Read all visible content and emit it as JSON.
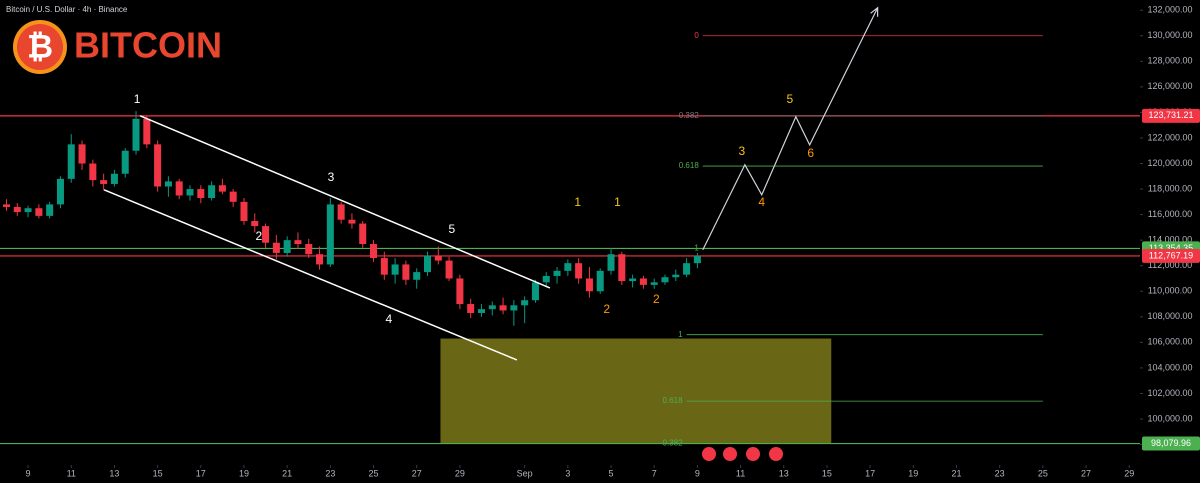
{
  "header": "Bitcoin / U.S. Dollar · 4h · Binance",
  "logo": {
    "symbol": "₿",
    "text": "BITCOIN"
  },
  "chart_data": {
    "type": "candlestick",
    "up_color": "#089981",
    "down_color": "#f23645",
    "xlim": [
      -1.3,
      51.5
    ],
    "ylim": [
      96400,
      132800
    ],
    "xticks": [
      {
        "value": 0,
        "label": "9"
      },
      {
        "value": 2,
        "label": "11"
      },
      {
        "value": 4,
        "label": "13"
      },
      {
        "value": 6,
        "label": "15"
      },
      {
        "value": 8,
        "label": "17"
      },
      {
        "value": 10,
        "label": "19"
      },
      {
        "value": 12,
        "label": "21"
      },
      {
        "value": 14,
        "label": "23"
      },
      {
        "value": 16,
        "label": "25"
      },
      {
        "value": 18,
        "label": "27"
      },
      {
        "value": 20,
        "label": "29"
      },
      {
        "value": 23,
        "label": "Sep"
      },
      {
        "value": 25,
        "label": "3"
      },
      {
        "value": 27,
        "label": "5"
      },
      {
        "value": 29,
        "label": "7"
      },
      {
        "value": 31,
        "label": "9"
      },
      {
        "value": 33,
        "label": "11"
      },
      {
        "value": 35,
        "label": "13"
      },
      {
        "value": 37,
        "label": "15"
      },
      {
        "value": 39,
        "label": "17"
      },
      {
        "value": 41,
        "label": "19"
      },
      {
        "value": 43,
        "label": "21"
      },
      {
        "value": 45,
        "label": "23"
      },
      {
        "value": 47,
        "label": "25"
      },
      {
        "value": 49,
        "label": "27"
      },
      {
        "value": 51,
        "label": "29"
      }
    ],
    "yticks": [
      {
        "value": 98000,
        "label": "98,000.00"
      },
      {
        "value": 100000,
        "label": "100,000.00"
      },
      {
        "value": 102000,
        "label": "102,000.00"
      },
      {
        "value": 104000,
        "label": "104,000.00"
      },
      {
        "value": 106000,
        "label": "106,000.00"
      },
      {
        "value": 108000,
        "label": "108,000.00"
      },
      {
        "value": 110000,
        "label": "110,000.00"
      },
      {
        "value": 112000,
        "label": "112,000.00"
      },
      {
        "value": 114000,
        "label": "114,000.00"
      },
      {
        "value": 116000,
        "label": "116,000.00"
      },
      {
        "value": 118000,
        "label": "118,000.00"
      },
      {
        "value": 120000,
        "label": "120,000.00"
      },
      {
        "value": 122000,
        "label": "122,000.00"
      },
      {
        "value": 124000,
        "label": "124,000.00"
      },
      {
        "value": 126000,
        "label": "126,000.00"
      },
      {
        "value": 128000,
        "label": "128,000.00"
      },
      {
        "value": 130000,
        "label": "130,000.00"
      },
      {
        "value": 132000,
        "label": "132,000.00"
      }
    ],
    "x": [
      -1,
      -0.5,
      0,
      0.5,
      1,
      1.5,
      2,
      2.5,
      3,
      3.5,
      4,
      4.5,
      5,
      5.5,
      6,
      6.5,
      7,
      7.5,
      8,
      8.5,
      9,
      9.5,
      10,
      10.5,
      11,
      11.5,
      12,
      12.5,
      13,
      13.5,
      14,
      14.5,
      15,
      15.5,
      16,
      16.5,
      17,
      17.5,
      18,
      18.5,
      19,
      19.5,
      20,
      20.5,
      21,
      21.5,
      22,
      22.5,
      23,
      23.5,
      24,
      24.5,
      25,
      25.5,
      26,
      26.5,
      27,
      27.5,
      28,
      28.5,
      29,
      29.5,
      30,
      30.5,
      31
    ],
    "open": [
      116800,
      116600,
      116200,
      116500,
      115900,
      116800,
      118800,
      121500,
      120000,
      118700,
      118400,
      119200,
      121000,
      123500,
      121500,
      118200,
      118600,
      117500,
      118000,
      117300,
      118300,
      117800,
      117000,
      115500,
      115100,
      113800,
      113000,
      114000,
      113700,
      112900,
      112100,
      116800,
      115600,
      115300,
      113700,
      112600,
      111300,
      112100,
      110900,
      111500,
      112800,
      112400,
      111000,
      109000,
      108300,
      108600,
      108900,
      108500,
      108900,
      109300,
      110700,
      111200,
      111600,
      112200,
      111000,
      110000,
      111600,
      112900,
      110800,
      111000,
      110500,
      110700,
      111100,
      111300,
      112200
    ],
    "high": [
      117200,
      116900,
      116700,
      116800,
      117000,
      119000,
      122300,
      121800,
      120300,
      119200,
      119500,
      121200,
      124100,
      123700,
      121800,
      119000,
      118800,
      118300,
      118300,
      118600,
      118800,
      118000,
      117300,
      116100,
      115300,
      114400,
      114300,
      114600,
      114100,
      113500,
      117300,
      117000,
      116100,
      115500,
      114000,
      113100,
      112600,
      112400,
      111800,
      113100,
      113500,
      112700,
      111300,
      109400,
      109000,
      109200,
      109500,
      109300,
      109600,
      110900,
      111500,
      111900,
      112500,
      112600,
      111900,
      111800,
      113400,
      113100,
      111300,
      111200,
      111000,
      111300,
      111700,
      112600,
      113000
    ],
    "low": [
      116300,
      115900,
      115800,
      115700,
      115700,
      116500,
      118500,
      119500,
      118200,
      117900,
      118200,
      118900,
      120700,
      121200,
      117800,
      117400,
      117200,
      117100,
      116900,
      117100,
      117600,
      116600,
      115200,
      114600,
      113400,
      112500,
      112700,
      113300,
      112600,
      111700,
      111900,
      115300,
      114900,
      113400,
      112300,
      110900,
      110600,
      110500,
      110200,
      111200,
      112100,
      110800,
      108600,
      107900,
      108000,
      108100,
      108200,
      107300,
      107500,
      109100,
      110300,
      110600,
      111200,
      110600,
      109500,
      109800,
      111300,
      110500,
      110300,
      110200,
      110200,
      110500,
      110800,
      111100,
      111800
    ],
    "close": [
      116600,
      116200,
      116500,
      115900,
      116800,
      118800,
      121500,
      120000,
      118700,
      118400,
      119200,
      121000,
      123500,
      121500,
      118200,
      118600,
      117500,
      118000,
      117300,
      118300,
      117800,
      117000,
      115500,
      115100,
      113800,
      113000,
      114000,
      113700,
      112900,
      112100,
      116800,
      115600,
      115300,
      113700,
      112600,
      111300,
      112100,
      110900,
      111500,
      112800,
      112400,
      111000,
      109000,
      108300,
      108600,
      108900,
      108500,
      108900,
      109300,
      110700,
      111200,
      111600,
      112200,
      111000,
      110000,
      111600,
      112900,
      110800,
      111000,
      110500,
      110700,
      111100,
      111300,
      112200,
      112767.19
    ],
    "price_levels": [
      {
        "value": 123731.21,
        "label": "123,731.21",
        "color": "#f23645"
      },
      {
        "value": 113354.35,
        "label": "113,354.35",
        "color": "#4caf50"
      },
      {
        "value": 112767.19,
        "label": "112,767.19",
        "color": "#f23645"
      },
      {
        "value": 98079.96,
        "label": "98,079.96",
        "color": "#4caf50"
      }
    ],
    "fib_levels": [
      {
        "label": "0",
        "value": 130000,
        "color": "#f23645",
        "x": [
          31.25,
          47
        ]
      },
      {
        "label": "0.382",
        "value": 123731.21,
        "color": "#787b86",
        "x": [
          31.25,
          47
        ]
      },
      {
        "label": "0.618",
        "value": 119800,
        "color": "#4caf50",
        "x": [
          31.25,
          47
        ]
      },
      {
        "label": "1",
        "value": 113354.35,
        "color": "#4caf50",
        "x": [
          31.25,
          47
        ]
      },
      {
        "label": "1",
        "value": 106600,
        "color": "#4caf50",
        "x": [
          30.5,
          47
        ]
      },
      {
        "label": "0.618",
        "value": 101400,
        "color": "#4caf50",
        "x": [
          30.5,
          47
        ]
      },
      {
        "label": "0.382",
        "value": 98079.96,
        "color": "#4caf50",
        "x": [
          30.5,
          47
        ]
      }
    ],
    "zone": {
      "x": [
        19.1,
        37.2
      ],
      "y": [
        98100,
        106300
      ],
      "color": "#8c8a1c"
    },
    "channel": [
      {
        "x": [
          5.19,
          24.17
        ],
        "y": [
          123730,
          110260
        ]
      },
      {
        "x": [
          3.52,
          22.64
        ],
        "y": [
          117940,
          104620
        ]
      }
    ],
    "projection": {
      "x": [
        31.25,
        33.2,
        33.98,
        35.56,
        36.2,
        39.35
      ],
      "y": [
        113240,
        119900,
        117550,
        123660,
        121460,
        132190
      ]
    },
    "wave_labels": [
      {
        "text": "1",
        "x": 5.05,
        "y": 124980,
        "color": "#ffffff"
      },
      {
        "text": "2",
        "x": 10.69,
        "y": 114250,
        "color": "#ffffff"
      },
      {
        "text": "3",
        "x": 14.03,
        "y": 118880,
        "color": "#ffffff"
      },
      {
        "text": "4",
        "x": 16.71,
        "y": 107760,
        "color": "#ffffff"
      },
      {
        "text": "5",
        "x": 19.63,
        "y": 114800,
        "color": "#ffffff"
      },
      {
        "text": "1",
        "x": 25.46,
        "y": 116920,
        "color": "#f5c518"
      },
      {
        "text": "2",
        "x": 26.8,
        "y": 108540,
        "color": "#ff9800"
      },
      {
        "text": "1",
        "x": 27.3,
        "y": 116920,
        "color": "#f5c518"
      },
      {
        "text": "2",
        "x": 29.1,
        "y": 109320,
        "color": "#ff9800"
      },
      {
        "text": "3",
        "x": 33.06,
        "y": 120920,
        "color": "#f5c518"
      },
      {
        "text": "4",
        "x": 33.98,
        "y": 116920,
        "color": "#ff9800"
      },
      {
        "text": "5",
        "x": 35.28,
        "y": 124980,
        "color": "#f5c518"
      },
      {
        "text": "6",
        "x": 36.25,
        "y": 120750,
        "color": "#ff9800"
      }
    ]
  }
}
